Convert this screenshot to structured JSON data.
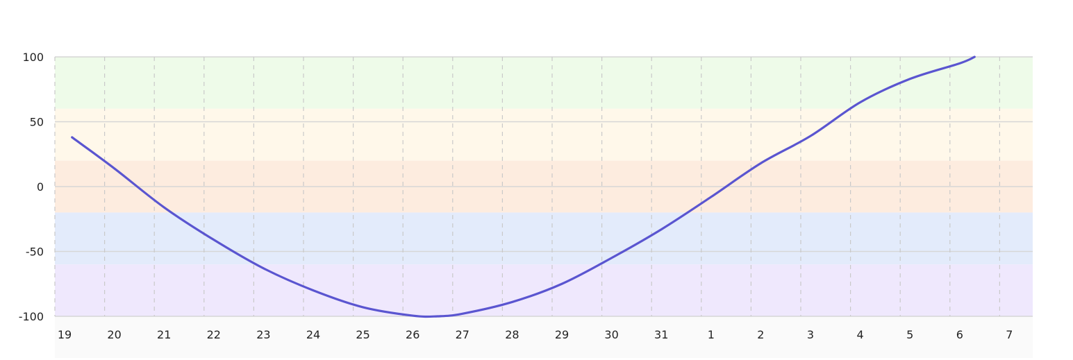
{
  "chart_data": {
    "type": "line",
    "title": "",
    "xlabel": "",
    "ylabel": "",
    "x_tick_labels": [
      "19",
      "20",
      "21",
      "22",
      "23",
      "24",
      "25",
      "26",
      "27",
      "28",
      "29",
      "30",
      "31",
      "1",
      "2",
      "3",
      "4",
      "5",
      "6",
      "7"
    ],
    "ylim": [
      -100,
      100
    ],
    "y_ticks": [
      100,
      50,
      0,
      -50,
      -100
    ],
    "grid": {
      "vertical": "dashed",
      "horizontal": "solid"
    },
    "bands": [
      {
        "from": 60,
        "to": 100,
        "color": "#eefbe9"
      },
      {
        "from": 20,
        "to": 60,
        "color": "#fff8ea"
      },
      {
        "from": -20,
        "to": 20,
        "color": "#fdecdf"
      },
      {
        "from": -60,
        "to": -20,
        "color": "#e3ebfb"
      },
      {
        "from": -100,
        "to": -60,
        "color": "#efe8fd"
      }
    ],
    "series": [
      {
        "color": "#5a55d0",
        "x": [
          0.15,
          1,
          2,
          3,
          4,
          5,
          6,
          7,
          7.5,
          8,
          9,
          10,
          11,
          12,
          13,
          14,
          15,
          16,
          17,
          18,
          18.3
        ],
        "values": [
          38,
          14,
          -16,
          -41,
          -63,
          -80,
          -93,
          -99.5,
          -100,
          -98,
          -89,
          -75,
          -55,
          -33,
          -8,
          18,
          39,
          65,
          83,
          95,
          100
        ]
      }
    ]
  }
}
